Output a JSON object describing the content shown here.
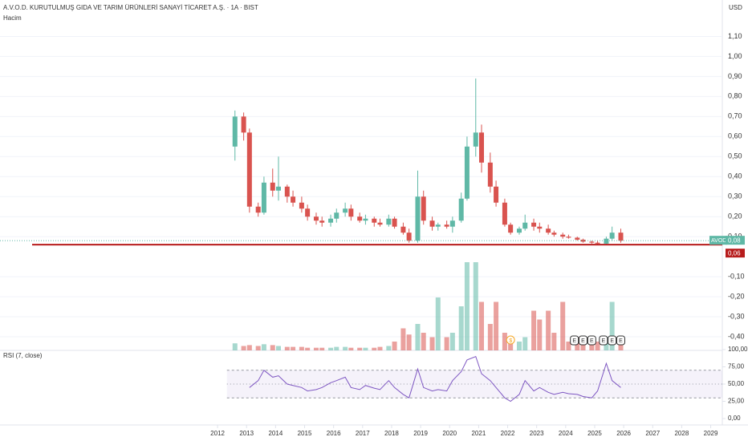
{
  "chart_data": {
    "type": "candlestick",
    "title": "A.V.O.D. KURUTULMUŞ GIDA VE TARIM ÜRÜNLERİ SANAYİ TİCARET A.Ş. · 1A · BIST",
    "volume_title": "Hacim",
    "rsi_title": "RSI (7, close)",
    "currency": "USD",
    "symbol": "AVOD",
    "up_color": "#5fb8a6",
    "down_color": "#d9534f",
    "x": [
      2012.6,
      2012.9,
      2013.1,
      2013.4,
      2013.6,
      2013.9,
      2014.1,
      2014.4,
      2014.6,
      2014.9,
      2015.1,
      2015.4,
      2015.6,
      2015.9,
      2016.1,
      2016.4,
      2016.6,
      2016.9,
      2017.1,
      2017.4,
      2017.6,
      2017.9,
      2018.1,
      2018.4,
      2018.6,
      2018.9,
      2019.1,
      2019.4,
      2019.6,
      2019.9,
      2020.1,
      2020.4,
      2020.6,
      2020.9,
      2021.1,
      2021.4,
      2021.6,
      2021.9,
      2022.1,
      2022.4,
      2022.6,
      2022.9,
      2023.1,
      2023.4,
      2023.6,
      2023.9,
      2024.1,
      2024.4,
      2024.6,
      2024.9,
      2025.1,
      2025.4,
      2025.6,
      2025.9
    ],
    "open": [
      0.55,
      0.7,
      0.62,
      0.25,
      0.22,
      0.37,
      0.33,
      0.35,
      0.3,
      0.27,
      0.24,
      0.2,
      0.18,
      0.17,
      0.19,
      0.22,
      0.24,
      0.2,
      0.18,
      0.19,
      0.17,
      0.16,
      0.19,
      0.15,
      0.12,
      0.08,
      0.3,
      0.18,
      0.15,
      0.16,
      0.15,
      0.18,
      0.29,
      0.55,
      0.62,
      0.47,
      0.35,
      0.27,
      0.16,
      0.12,
      0.14,
      0.17,
      0.15,
      0.14,
      0.12,
      0.11,
      0.1,
      0.095,
      0.085,
      0.075,
      0.07,
      0.065,
      0.09,
      0.12
    ],
    "high": [
      0.73,
      0.72,
      0.64,
      0.27,
      0.4,
      0.44,
      0.5,
      0.36,
      0.33,
      0.3,
      0.26,
      0.22,
      0.2,
      0.21,
      0.24,
      0.27,
      0.26,
      0.22,
      0.21,
      0.2,
      0.19,
      0.21,
      0.2,
      0.17,
      0.14,
      0.43,
      0.33,
      0.2,
      0.17,
      0.18,
      0.2,
      0.32,
      0.6,
      0.89,
      0.66,
      0.52,
      0.38,
      0.29,
      0.17,
      0.15,
      0.21,
      0.19,
      0.17,
      0.16,
      0.13,
      0.12,
      0.11,
      0.1,
      0.09,
      0.08,
      0.08,
      0.1,
      0.15,
      0.14
    ],
    "low": [
      0.48,
      0.58,
      0.22,
      0.2,
      0.21,
      0.3,
      0.28,
      0.27,
      0.25,
      0.22,
      0.18,
      0.16,
      0.15,
      0.15,
      0.17,
      0.2,
      0.18,
      0.17,
      0.16,
      0.15,
      0.15,
      0.15,
      0.14,
      0.11,
      0.07,
      0.07,
      0.16,
      0.13,
      0.13,
      0.14,
      0.12,
      0.17,
      0.28,
      0.5,
      0.42,
      0.32,
      0.25,
      0.15,
      0.11,
      0.11,
      0.13,
      0.13,
      0.12,
      0.11,
      0.1,
      0.09,
      0.09,
      0.08,
      0.07,
      0.065,
      0.06,
      0.06,
      0.08,
      0.07
    ],
    "close": [
      0.7,
      0.62,
      0.25,
      0.22,
      0.37,
      0.33,
      0.35,
      0.3,
      0.27,
      0.24,
      0.2,
      0.18,
      0.17,
      0.19,
      0.22,
      0.24,
      0.2,
      0.18,
      0.19,
      0.17,
      0.16,
      0.19,
      0.15,
      0.12,
      0.08,
      0.3,
      0.18,
      0.15,
      0.16,
      0.15,
      0.18,
      0.29,
      0.55,
      0.62,
      0.47,
      0.35,
      0.27,
      0.16,
      0.12,
      0.14,
      0.17,
      0.15,
      0.14,
      0.12,
      0.11,
      0.1,
      0.095,
      0.085,
      0.075,
      0.07,
      0.065,
      0.09,
      0.12,
      0.08
    ],
    "volume": [
      8,
      5,
      6,
      5,
      7,
      6,
      5,
      4,
      4,
      4,
      3,
      3,
      3,
      3,
      4,
      4,
      3,
      3,
      3,
      3,
      4,
      5,
      10,
      25,
      18,
      30,
      20,
      15,
      60,
      15,
      20,
      50,
      100,
      100,
      55,
      30,
      55,
      20,
      12,
      10,
      15,
      45,
      35,
      45,
      20,
      55,
      10,
      15,
      15,
      10,
      10,
      15,
      55,
      15
    ],
    "volume_lim": [
      0,
      100
    ],
    "rsi": {
      "name": "RSI",
      "color": "#7e57c2",
      "values": [
        null,
        null,
        45,
        55,
        70,
        60,
        62,
        50,
        48,
        45,
        40,
        42,
        45,
        52,
        55,
        60,
        45,
        42,
        48,
        44,
        42,
        55,
        45,
        35,
        30,
        72,
        45,
        40,
        42,
        40,
        55,
        68,
        85,
        90,
        65,
        55,
        45,
        30,
        25,
        35,
        55,
        40,
        45,
        38,
        35,
        38,
        36,
        35,
        32,
        30,
        40,
        80,
        55,
        45
      ]
    },
    "rsi_levels": [
      70,
      50,
      30
    ],
    "rsi_ylim": [
      0,
      100
    ],
    "rsi_yticks": [
      {
        "value": 100,
        "label": "100,00"
      },
      {
        "value": 75,
        "label": "75,00"
      },
      {
        "value": 50,
        "label": "50,00"
      },
      {
        "value": 25,
        "label": "25,00"
      },
      {
        "value": 0,
        "label": "0,00"
      }
    ],
    "xlim": [
      2004.5,
      2029.4
    ],
    "xticks": [
      2012,
      2013,
      2014,
      2015,
      2016,
      2017,
      2018,
      2019,
      2020,
      2021,
      2022,
      2023,
      2024,
      2025,
      2026,
      2027,
      2028,
      2029
    ],
    "ylim": [
      -0.468,
      1.282
    ],
    "yticks": [
      {
        "value": 1.1,
        "label": "1,10"
      },
      {
        "value": 1.0,
        "label": "1,00"
      },
      {
        "value": 0.9,
        "label": "0,90"
      },
      {
        "value": 0.8,
        "label": "0,80"
      },
      {
        "value": 0.7,
        "label": "0,70"
      },
      {
        "value": 0.6,
        "label": "0,60"
      },
      {
        "value": 0.5,
        "label": "0,50"
      },
      {
        "value": 0.4,
        "label": "0,40"
      },
      {
        "value": 0.3,
        "label": "0,30"
      },
      {
        "value": 0.2,
        "label": "0,20"
      },
      {
        "value": 0.1,
        "label": "0,10"
      },
      {
        "value": -0.1,
        "label": "-0,10"
      },
      {
        "value": -0.2,
        "label": "-0,20"
      },
      {
        "value": -0.3,
        "label": "-0,30"
      },
      {
        "value": -0.4,
        "label": "-0,40"
      }
    ],
    "grid": true,
    "last_price": {
      "value": 0.08,
      "label": "0,08"
    },
    "support_line": {
      "value": 0.06,
      "label": "0,06",
      "color": "#b71c1c"
    },
    "events": [
      {
        "x": 2022.1,
        "label": "$"
      },
      {
        "x": 2024.3,
        "label": "E"
      },
      {
        "x": 2024.6,
        "label": "E"
      },
      {
        "x": 2024.9,
        "label": "E"
      },
      {
        "x": 2025.3,
        "label": "E"
      },
      {
        "x": 2025.6,
        "label": "E"
      },
      {
        "x": 2025.9,
        "label": "E"
      }
    ]
  }
}
